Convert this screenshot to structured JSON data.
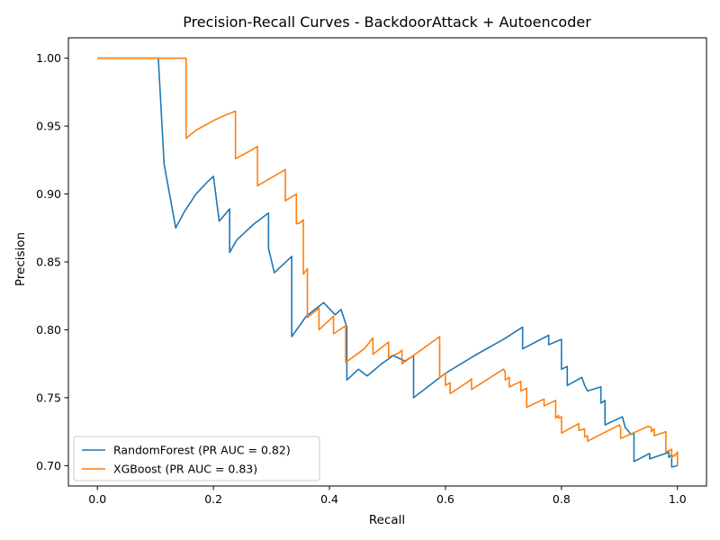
{
  "chart_data": {
    "type": "line",
    "title": "Precision-Recall Curves - BackdoorAttack + Autoencoder",
    "xlabel": "Recall",
    "ylabel": "Precision",
    "xlim": [
      -0.05,
      1.05
    ],
    "ylim": [
      0.685,
      1.015
    ],
    "xticks": [
      "0.0",
      "0.2",
      "0.4",
      "0.6",
      "0.8",
      "1.0"
    ],
    "yticks": [
      "0.70",
      "0.75",
      "0.80",
      "0.85",
      "0.90",
      "0.95",
      "1.00"
    ],
    "grid": false,
    "legend": "lower-left",
    "series": [
      {
        "name": "RandomForest (PR AUC = 0.82)",
        "color": "#1f77b4",
        "x": [
          0.0,
          0.105,
          0.115,
          0.135,
          0.15,
          0.17,
          0.19,
          0.2,
          0.21,
          0.228,
          0.228,
          0.24,
          0.27,
          0.295,
          0.295,
          0.305,
          0.335,
          0.335,
          0.36,
          0.39,
          0.41,
          0.42,
          0.43,
          0.43,
          0.45,
          0.465,
          0.49,
          0.51,
          0.53,
          0.545,
          0.545,
          0.6,
          0.65,
          0.7,
          0.733,
          0.733,
          0.778,
          0.778,
          0.8,
          0.8,
          0.81,
          0.81,
          0.835,
          0.84,
          0.845,
          0.868,
          0.868,
          0.875,
          0.875,
          0.905,
          0.91,
          0.92,
          0.925,
          0.925,
          0.952,
          0.952,
          0.98,
          0.985,
          0.985,
          0.99,
          0.99,
          1.0
        ],
        "y": [
          1.0,
          1.0,
          0.922,
          0.875,
          0.887,
          0.9,
          0.909,
          0.913,
          0.88,
          0.889,
          0.857,
          0.866,
          0.878,
          0.886,
          0.86,
          0.842,
          0.854,
          0.795,
          0.81,
          0.82,
          0.811,
          0.815,
          0.802,
          0.763,
          0.771,
          0.766,
          0.775,
          0.781,
          0.777,
          0.781,
          0.75,
          0.768,
          0.781,
          0.793,
          0.802,
          0.786,
          0.796,
          0.789,
          0.793,
          0.771,
          0.773,
          0.759,
          0.765,
          0.759,
          0.755,
          0.758,
          0.746,
          0.748,
          0.73,
          0.736,
          0.728,
          0.723,
          0.724,
          0.703,
          0.709,
          0.705,
          0.709,
          0.71,
          0.706,
          0.708,
          0.699,
          0.7
        ]
      },
      {
        "name": "XGBoost (PR AUC = 0.83)",
        "color": "#ff7f0e",
        "x": [
          0.0,
          0.153,
          0.153,
          0.17,
          0.2,
          0.22,
          0.238,
          0.238,
          0.26,
          0.276,
          0.276,
          0.3,
          0.324,
          0.324,
          0.343,
          0.343,
          0.35,
          0.355,
          0.355,
          0.362,
          0.362,
          0.382,
          0.382,
          0.407,
          0.407,
          0.428,
          0.428,
          0.46,
          0.475,
          0.475,
          0.49,
          0.502,
          0.502,
          0.52,
          0.525,
          0.525,
          0.59,
          0.59,
          0.6,
          0.6,
          0.608,
          0.608,
          0.64,
          0.645,
          0.645,
          0.7,
          0.703,
          0.703,
          0.71,
          0.71,
          0.73,
          0.73,
          0.74,
          0.74,
          0.77,
          0.77,
          0.79,
          0.79,
          0.795,
          0.795,
          0.8,
          0.8,
          0.83,
          0.83,
          0.84,
          0.84,
          0.845,
          0.845,
          0.9,
          0.902,
          0.902,
          0.95,
          0.955,
          0.955,
          0.96,
          0.96,
          0.98,
          0.98,
          0.99,
          0.99,
          0.995,
          0.995,
          1.0,
          1.0
        ],
        "y": [
          1.0,
          1.0,
          0.941,
          0.947,
          0.954,
          0.958,
          0.961,
          0.926,
          0.931,
          0.935,
          0.906,
          0.912,
          0.918,
          0.895,
          0.9,
          0.878,
          0.879,
          0.881,
          0.841,
          0.845,
          0.809,
          0.816,
          0.8,
          0.81,
          0.797,
          0.803,
          0.776,
          0.786,
          0.794,
          0.782,
          0.787,
          0.791,
          0.78,
          0.783,
          0.785,
          0.775,
          0.795,
          0.765,
          0.768,
          0.759,
          0.761,
          0.753,
          0.762,
          0.764,
          0.756,
          0.771,
          0.769,
          0.763,
          0.765,
          0.758,
          0.762,
          0.755,
          0.757,
          0.743,
          0.749,
          0.744,
          0.748,
          0.735,
          0.737,
          0.735,
          0.736,
          0.724,
          0.731,
          0.726,
          0.727,
          0.721,
          0.722,
          0.718,
          0.73,
          0.728,
          0.72,
          0.729,
          0.728,
          0.725,
          0.727,
          0.722,
          0.725,
          0.71,
          0.712,
          0.706,
          0.708,
          0.707,
          0.71,
          0.7
        ]
      }
    ]
  }
}
